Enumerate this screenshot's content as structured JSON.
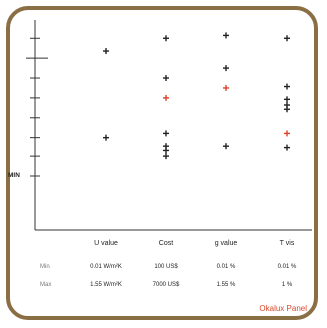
{
  "chart_data": {
    "type": "scatter",
    "categories": [
      "U value",
      "Cost",
      "g value",
      "T vis"
    ],
    "axis_label": "MIN",
    "series": [
      {
        "color": "#222222",
        "points": [
          {
            "x": "U value",
            "y": 0.88
          },
          {
            "x": "U value",
            "y": 0.27
          },
          {
            "x": "Cost",
            "y": 0.97
          },
          {
            "x": "Cost",
            "y": 0.69
          },
          {
            "x": "Cost",
            "y": 0.3
          },
          {
            "x": "Cost",
            "y": 0.21
          },
          {
            "x": "Cost",
            "y": 0.18
          },
          {
            "x": "Cost",
            "y": 0.14
          },
          {
            "x": "g value",
            "y": 0.99
          },
          {
            "x": "g value",
            "y": 0.76
          },
          {
            "x": "g value",
            "y": 0.21
          },
          {
            "x": "T vis",
            "y": 0.97
          },
          {
            "x": "T vis",
            "y": 0.63
          },
          {
            "x": "T vis",
            "y": 0.54
          },
          {
            "x": "T vis",
            "y": 0.5
          },
          {
            "x": "T vis",
            "y": 0.47
          },
          {
            "x": "T vis",
            "y": 0.2
          }
        ]
      },
      {
        "color": "#e0402a",
        "points": [
          {
            "x": "Cost",
            "y": 0.55
          },
          {
            "x": "g value",
            "y": 0.62
          },
          {
            "x": "T vis",
            "y": 0.3
          }
        ]
      }
    ],
    "ylim": [
      0,
      1
    ],
    "y_ticks": [
      0,
      0.14,
      0.27,
      0.41,
      0.55,
      0.69,
      0.83,
      0.97
    ],
    "y_major_tick": 0.83
  },
  "table": {
    "rows": [
      {
        "label": "Min",
        "values": [
          "0.01 W/m²K",
          "100 US$",
          "0.01 %",
          "0.01 %"
        ]
      },
      {
        "label": "Max",
        "values": [
          "1.55 W/m²K",
          "7000 US$",
          "1.55 %",
          "1 %"
        ]
      }
    ]
  },
  "brand": "Okalux Panel"
}
